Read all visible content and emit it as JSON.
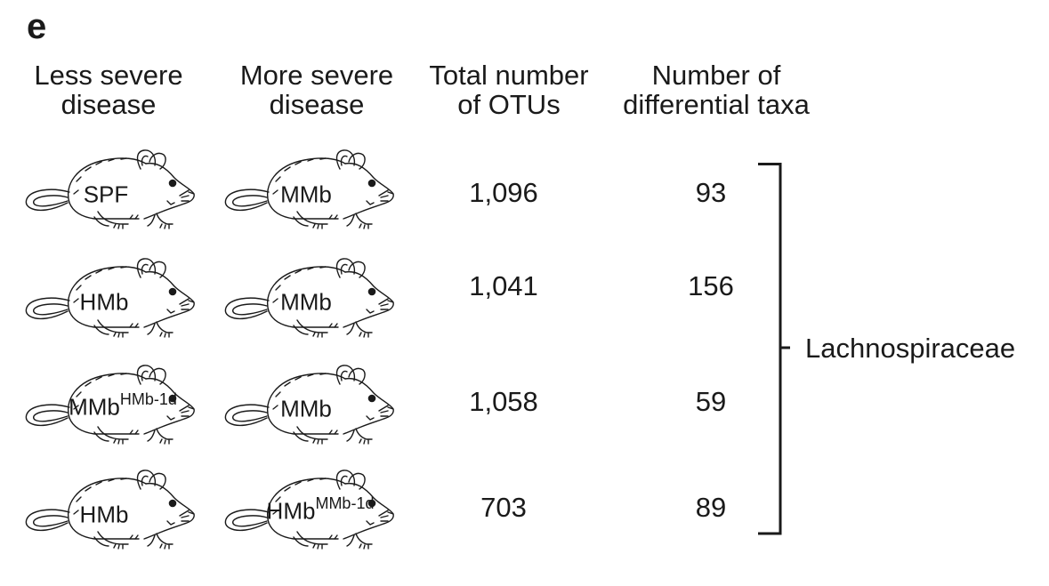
{
  "panel_letter": "e",
  "headers": {
    "less_severe": "Less severe\ndisease",
    "more_severe": "More severe\ndisease",
    "total_otus": "Total number\nof OTUs",
    "differential_taxa": "Number of\ndifferential taxa"
  },
  "rows": [
    {
      "less_severe": {
        "label": "SPF",
        "superscript": ""
      },
      "more_severe": {
        "label": "MMb",
        "superscript": ""
      },
      "total_otus": "1,096",
      "differential_taxa": "93"
    },
    {
      "less_severe": {
        "label": "HMb",
        "superscript": ""
      },
      "more_severe": {
        "label": "MMb",
        "superscript": ""
      },
      "total_otus": "1,041",
      "differential_taxa": "156"
    },
    {
      "less_severe": {
        "label": "MMb",
        "superscript": "HMb-1d"
      },
      "more_severe": {
        "label": "MMb",
        "superscript": ""
      },
      "total_otus": "1,058",
      "differential_taxa": "59"
    },
    {
      "less_severe": {
        "label": "HMb",
        "superscript": ""
      },
      "more_severe": {
        "label": "HMb",
        "superscript": "MMb-1d"
      },
      "total_otus": "703",
      "differential_taxa": "89"
    }
  ],
  "bracket_label": "Lachnospiraceae",
  "colors": {
    "ink": "#1a1a1a",
    "background": "#ffffff"
  },
  "icons": {
    "mouse": "mouse-outline-icon"
  }
}
